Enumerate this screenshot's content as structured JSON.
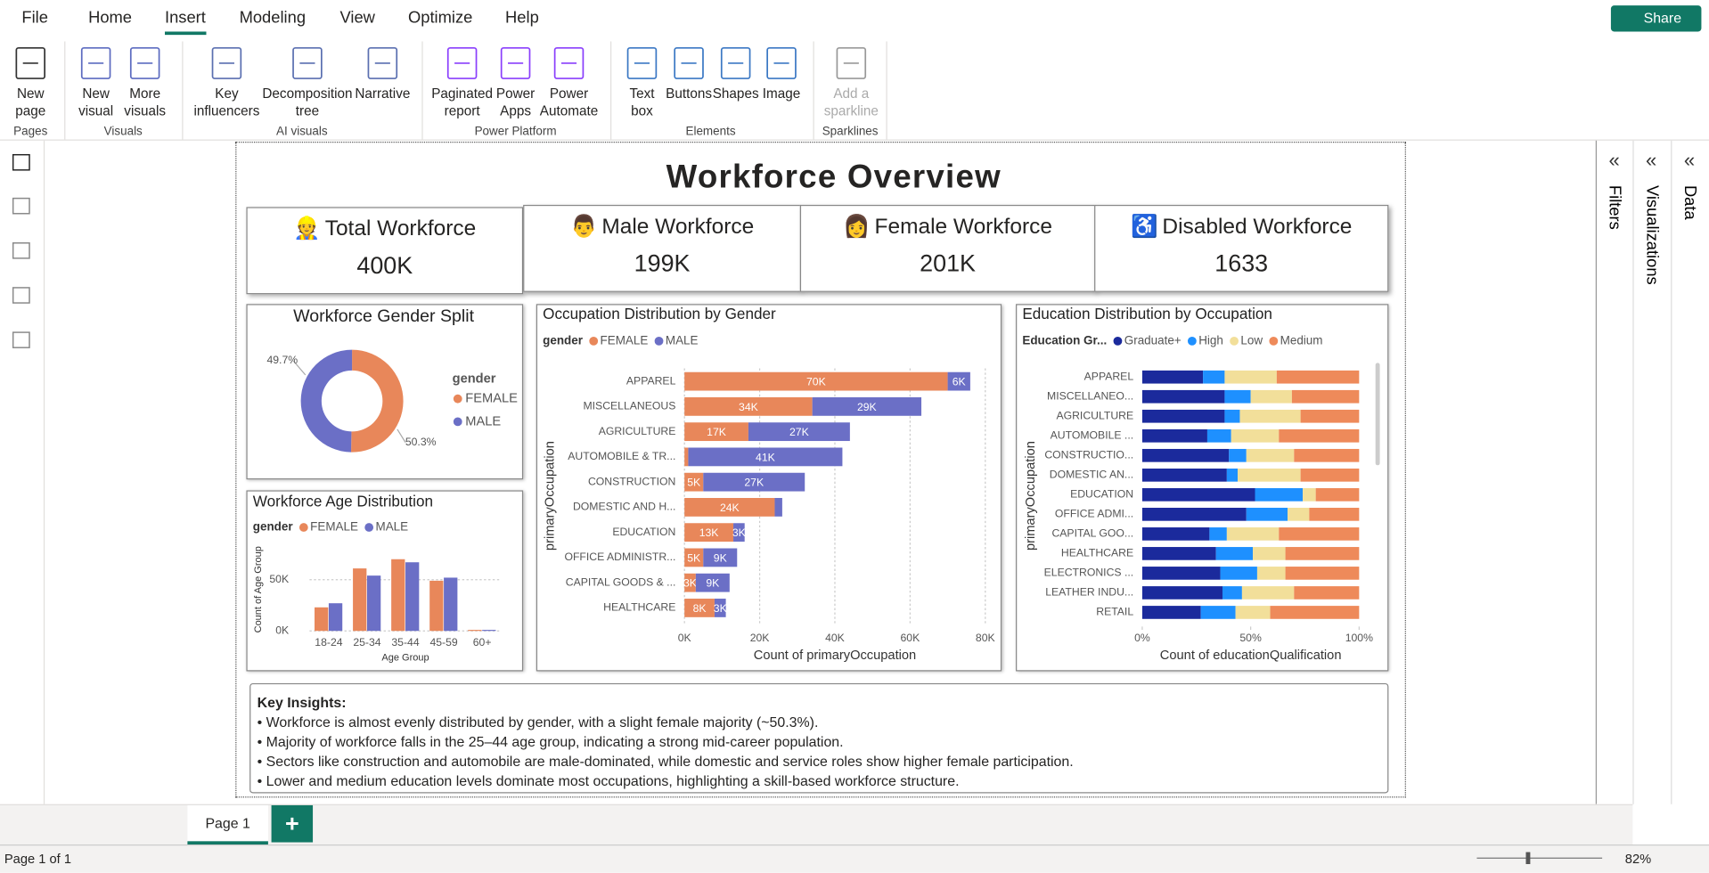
{
  "menu": [
    "File",
    "Home",
    "Insert",
    "Modeling",
    "View",
    "Optimize",
    "Help"
  ],
  "share": "Share",
  "ribbon_groups": [
    {
      "name": "Pages",
      "buttons": [
        "New page"
      ]
    },
    {
      "name": "Visuals",
      "buttons": [
        "New visual",
        "More visuals"
      ]
    },
    {
      "name": "AI visuals",
      "buttons": [
        "Key influencers",
        "Decomposition tree",
        "Narrative"
      ]
    },
    {
      "name": "Power Platform",
      "buttons": [
        "Paginated report",
        "Power Apps",
        "Power Automate"
      ]
    },
    {
      "name": "Elements",
      "buttons": [
        "Text box",
        "Buttons",
        "Shapes",
        "Image"
      ]
    },
    {
      "name": "Sparklines",
      "buttons": [
        "Add a sparkline"
      ]
    }
  ],
  "panes": [
    "Filters",
    "Visualizations",
    "Data"
  ],
  "page_tab": "Page 1",
  "status": "Page 1 of 1",
  "zoom": "82%",
  "report": {
    "title": "Workforce Overview",
    "kpis": [
      {
        "icon": "👷",
        "label": "Total Workforce",
        "value": "400K"
      },
      {
        "icon": "👨",
        "label": "Male Workforce",
        "value": "199K"
      },
      {
        "icon": "👩",
        "label": "Female Workforce",
        "value": "201K"
      },
      {
        "icon": "♿",
        "label": "Disabled Workforce",
        "value": "1633"
      }
    ],
    "insights": {
      "heading": "Key Insights:",
      "items": [
        "• Workforce is almost evenly distributed by gender, with a slight female majority (~50.3%).",
        "• Majority of workforce falls in the 25–44 age group, indicating a strong mid-career population.",
        "• Sectors like construction and automobile are male-dominated, while domestic and service roles show higher female participation.",
        "• Lower and medium education levels dominate most occupations, highlighting a skill-based workforce structure."
      ]
    }
  },
  "chart_data": [
    {
      "type": "pie",
      "title": "Workforce Gender Split",
      "legend_title": "gender",
      "categories": [
        "FEMALE",
        "MALE"
      ],
      "values": [
        50.3,
        49.7
      ],
      "value_labels": [
        "50.3%",
        "49.7%"
      ],
      "colors": [
        "#e8875a",
        "#6b6fc6"
      ]
    },
    {
      "type": "bar",
      "title": "Workforce Age Distribution",
      "legend_title": "gender",
      "x_label": "Age Group",
      "y_label": "Count of Age Group",
      "categories": [
        "18-24",
        "25-34",
        "35-44",
        "45-59",
        "60+"
      ],
      "series": [
        {
          "name": "FEMALE",
          "color": "#e8875a",
          "values": [
            23000,
            61000,
            70000,
            49000,
            1000
          ]
        },
        {
          "name": "MALE",
          "color": "#6b6fc6",
          "values": [
            27000,
            54000,
            67000,
            52000,
            1000
          ]
        }
      ],
      "ylim": [
        0,
        80000
      ],
      "yticks": [
        {
          "value": 0,
          "label": "0K"
        },
        {
          "value": 50000,
          "label": "50K"
        }
      ],
      "grid": true
    },
    {
      "type": "stacked-hbar",
      "title": "Occupation Distribution by Gender",
      "legend_title": "gender",
      "x_label": "Count of primaryOccupation",
      "y_label": "primaryOccupation",
      "categories": [
        "APPAREL",
        "MISCELLANEOUS",
        "AGRICULTURE",
        "AUTOMOBILE & TR...",
        "CONSTRUCTION",
        "DOMESTIC AND H...",
        "EDUCATION",
        "OFFICE ADMINISTR...",
        "CAPITAL GOODS & ...",
        "HEALTHCARE"
      ],
      "series": [
        {
          "name": "FEMALE",
          "color": "#e8875a",
          "values": [
            70000,
            34000,
            17000,
            1000,
            5000,
            24000,
            13000,
            5000,
            3000,
            8000
          ],
          "value_labels": [
            "70K",
            "34K",
            "17K",
            null,
            "5K",
            "24K",
            "13K",
            "5K",
            "3K",
            "8K"
          ]
        },
        {
          "name": "MALE",
          "color": "#6b6fc6",
          "values": [
            6000,
            29000,
            27000,
            41000,
            27000,
            2000,
            3000,
            9000,
            9000,
            3000
          ],
          "value_labels": [
            "6K",
            "29K",
            "27K",
            "41K",
            "27K",
            null,
            "3K",
            "9K",
            "9K",
            "3K"
          ]
        }
      ],
      "xlim": [
        0,
        80000
      ],
      "xticks": [
        {
          "value": 0,
          "label": "0K"
        },
        {
          "value": 20000,
          "label": "20K"
        },
        {
          "value": 40000,
          "label": "40K"
        },
        {
          "value": 60000,
          "label": "60K"
        },
        {
          "value": 80000,
          "label": "80K"
        }
      ],
      "grid": true
    },
    {
      "type": "stacked-hbar",
      "title": "Education Distribution by Occupation",
      "legend_title": "Education Gr...",
      "x_label": "Count of educationQualification",
      "y_label": "primaryOccupation",
      "categories": [
        "APPAREL",
        "MISCELLANEO...",
        "AGRICULTURE",
        "AUTOMOBILE ...",
        "CONSTRUCTIO...",
        "DOMESTIC AN...",
        "EDUCATION",
        "OFFICE ADMI...",
        "CAPITAL GOO...",
        "HEALTHCARE",
        "ELECTRONICS ...",
        "LEATHER INDU...",
        "RETAIL"
      ],
      "series": [
        {
          "name": "Graduate+",
          "color": "#1b2a9c",
          "values": [
            28,
            38,
            38,
            30,
            40,
            39,
            52,
            48,
            31,
            34,
            36,
            37,
            27
          ]
        },
        {
          "name": "High",
          "color": "#1e90ff",
          "values": [
            10,
            12,
            7,
            11,
            8,
            5,
            22,
            19,
            8,
            17,
            17,
            9,
            16
          ]
        },
        {
          "name": "Low",
          "color": "#f2df9a",
          "values": [
            24,
            19,
            28,
            22,
            22,
            29,
            6,
            10,
            24,
            15,
            13,
            24,
            16
          ]
        },
        {
          "name": "Medium",
          "color": "#ee8a5a",
          "values": [
            38,
            31,
            27,
            37,
            30,
            27,
            20,
            23,
            37,
            34,
            34,
            30,
            41
          ]
        }
      ],
      "xlim": [
        0,
        100
      ],
      "xticks": [
        {
          "value": 0,
          "label": "0%"
        },
        {
          "value": 50,
          "label": "50%"
        },
        {
          "value": 100,
          "label": "100%"
        }
      ],
      "grid": false
    }
  ]
}
